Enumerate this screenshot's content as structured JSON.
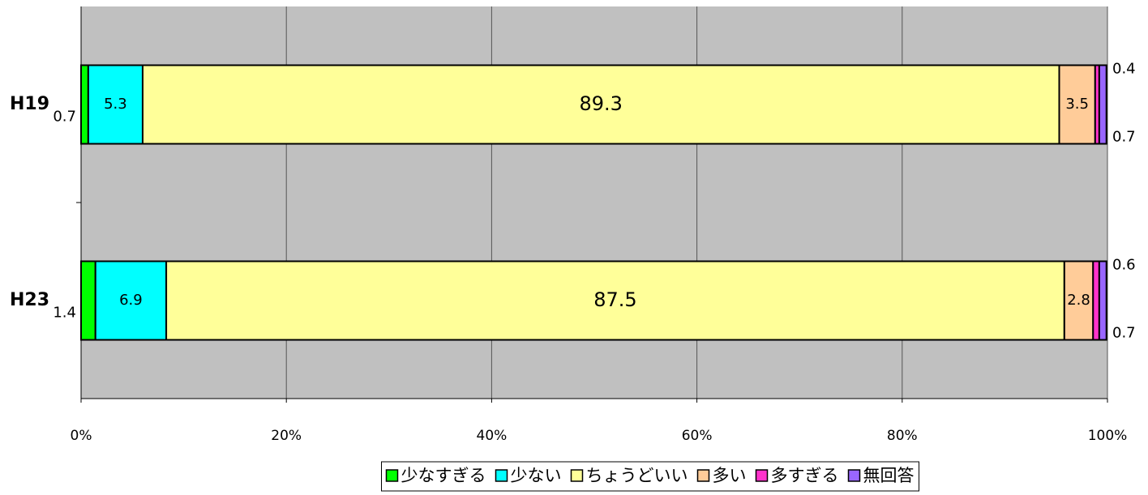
{
  "chart_data": {
    "type": "stacked_barh",
    "categories": [
      "H19",
      "H23"
    ],
    "series": [
      {
        "name": "少なすぎる",
        "color": "#00ff00",
        "values": [
          0.7,
          1.4
        ]
      },
      {
        "name": "少ない",
        "color": "#00ffff",
        "values": [
          5.3,
          6.9
        ]
      },
      {
        "name": "ちょうどいい",
        "color": "#ffff99",
        "values": [
          89.3,
          87.5
        ]
      },
      {
        "name": "多い",
        "color": "#ffcc99",
        "values": [
          3.5,
          2.8
        ]
      },
      {
        "name": "多すぎる",
        "color": "#ff33cc",
        "values": [
          0.4,
          0.6
        ]
      },
      {
        "name": "無回答",
        "color": "#9966ff",
        "values": [
          0.7,
          0.7
        ]
      }
    ],
    "xlim": [
      0,
      100
    ],
    "xticks": [
      {
        "value": 0,
        "label": "0%"
      },
      {
        "value": 20,
        "label": "20%"
      },
      {
        "value": 40,
        "label": "40%"
      },
      {
        "value": 60,
        "label": "60%"
      },
      {
        "value": 80,
        "label": "80%"
      },
      {
        "value": 100,
        "label": "100%"
      }
    ],
    "grid": true,
    "legend": "bottom"
  }
}
